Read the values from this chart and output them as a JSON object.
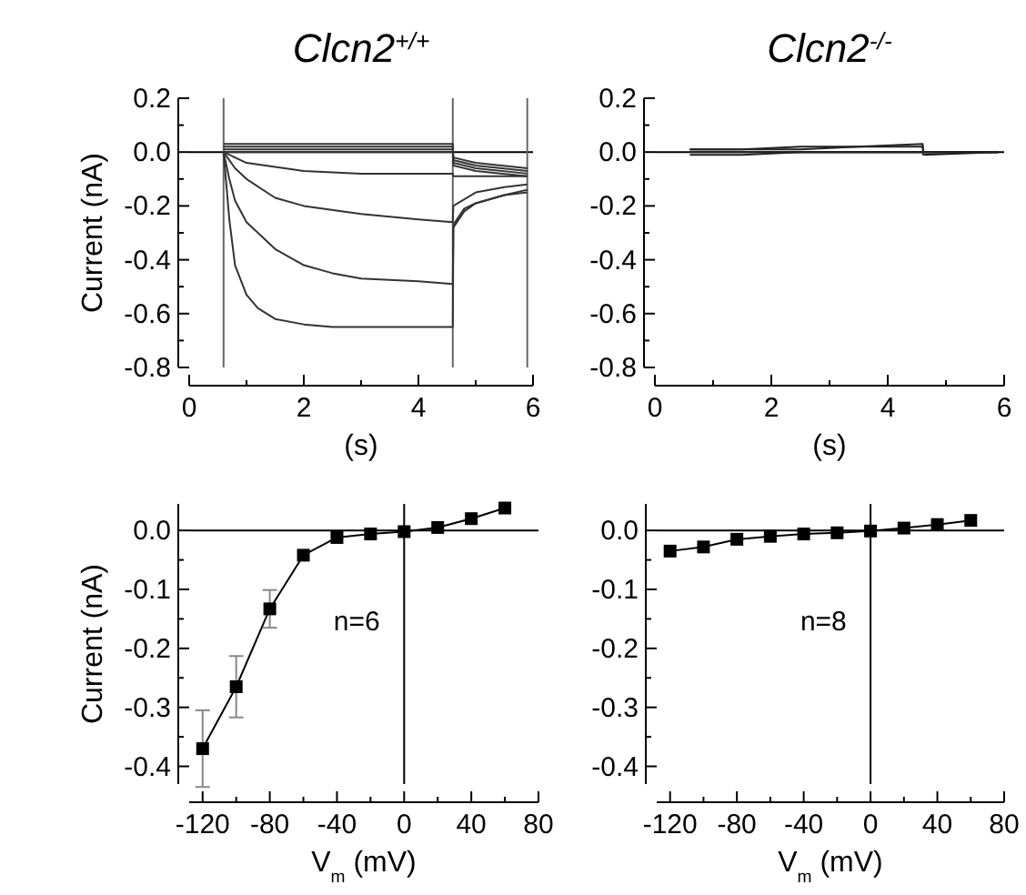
{
  "chart_data": [
    {
      "type": "line",
      "title": "Clcn2$^{+/+}$",
      "xlabel": "(s)",
      "ylabel": "Current (nA)",
      "marker": "none",
      "xlim": [
        0,
        6
      ],
      "ylim": [
        -0.8,
        0.2
      ],
      "xticks": [
        0,
        {
          "value": 1,
          "label": null
        },
        2,
        {
          "value": 3,
          "label": null
        },
        4,
        {
          "value": 5,
          "label": null
        },
        6
      ],
      "yticks": [
        {
          "value": 0.2,
          "label": "0.2"
        },
        {
          "value": 0.1,
          "label": null
        },
        {
          "value": 0,
          "label": "0.0"
        },
        {
          "value": -0.1,
          "label": null
        },
        {
          "value": -0.2,
          "label": "-0.2"
        },
        {
          "value": -0.3,
          "label": null
        },
        {
          "value": -0.4,
          "label": "-0.4"
        },
        {
          "value": -0.5,
          "label": null
        },
        {
          "value": -0.6,
          "label": "-0.6"
        },
        {
          "value": -0.7,
          "label": null
        },
        {
          "value": -0.8,
          "label": "-0.8"
        }
      ],
      "ref_lines": [
        {
          "axis": "y",
          "value": 0,
          "color": "#000000"
        },
        {
          "axis": "x",
          "value": 0.6,
          "color": "#666666"
        },
        {
          "axis": "x",
          "value": 4.6,
          "color": "#666666"
        },
        {
          "axis": "x",
          "value": 5.9,
          "color": "#666666"
        }
      ],
      "series": [
        {
          "color": "#333333",
          "x": [
            0.6,
            0.7,
            0.8,
            1.0,
            1.2,
            1.5,
            2,
            2.5,
            3,
            3.5,
            4,
            4.6,
            4.61,
            4.8,
            5,
            5.5,
            5.9
          ],
          "values": [
            0,
            -0.25,
            -0.42,
            -0.53,
            -0.58,
            -0.62,
            -0.64,
            -0.65,
            -0.65,
            -0.65,
            -0.65,
            -0.65,
            -0.28,
            -0.22,
            -0.19,
            -0.16,
            -0.15
          ]
        },
        {
          "color": "#333333",
          "x": [
            0.6,
            0.7,
            0.8,
            1.0,
            1.5,
            2,
            2.5,
            3,
            4,
            4.6,
            4.61,
            4.8,
            5,
            5.5,
            5.9
          ],
          "values": [
            0,
            -0.1,
            -0.18,
            -0.26,
            -0.36,
            -0.42,
            -0.45,
            -0.47,
            -0.48,
            -0.49,
            -0.27,
            -0.21,
            -0.19,
            -0.16,
            -0.14
          ]
        },
        {
          "color": "#333333",
          "x": [
            0.6,
            0.8,
            1.0,
            1.5,
            2,
            3,
            4,
            4.6,
            4.61,
            5,
            5.5,
            5.9
          ],
          "values": [
            0,
            -0.06,
            -0.1,
            -0.17,
            -0.2,
            -0.23,
            -0.25,
            -0.26,
            -0.2,
            -0.15,
            -0.13,
            -0.12
          ]
        },
        {
          "color": "#333333",
          "x": [
            0.6,
            1,
            2,
            3,
            4.6,
            4.61,
            5.9
          ],
          "values": [
            0,
            -0.04,
            -0.07,
            -0.08,
            -0.08,
            -0.09,
            -0.09
          ]
        },
        {
          "color": "#333333",
          "x": [
            0.6,
            4.6,
            4.61,
            5,
            5.9
          ],
          "values": [
            0,
            0,
            -0.02,
            -0.04,
            -0.06
          ]
        },
        {
          "color": "#333333",
          "x": [
            0.6,
            4.6,
            4.61,
            5,
            5.9
          ],
          "values": [
            0.01,
            0.01,
            -0.03,
            -0.05,
            -0.07
          ]
        },
        {
          "color": "#333333",
          "x": [
            0.6,
            4.6,
            4.61,
            5,
            5.9
          ],
          "values": [
            0.02,
            0.02,
            -0.04,
            -0.06,
            -0.08
          ]
        },
        {
          "color": "#333333",
          "x": [
            0.6,
            4.6,
            4.61,
            5,
            5.9
          ],
          "values": [
            0.03,
            0.03,
            -0.05,
            -0.07,
            -0.09
          ]
        }
      ]
    },
    {
      "type": "line",
      "title": "Clcn2$^{-/-}$",
      "xlabel": "(s)",
      "marker": "none",
      "xlim": [
        0,
        6
      ],
      "ylim": [
        -0.8,
        0.2
      ],
      "xticks": [
        0,
        {
          "value": 1,
          "label": null
        },
        2,
        {
          "value": 3,
          "label": null
        },
        4,
        {
          "value": 5,
          "label": null
        },
        6
      ],
      "yticks": [
        {
          "value": 0.2,
          "label": "0.2"
        },
        {
          "value": 0.1,
          "label": null
        },
        {
          "value": 0,
          "label": "0.0"
        },
        {
          "value": -0.1,
          "label": null
        },
        {
          "value": -0.2,
          "label": "-0.2"
        },
        {
          "value": -0.3,
          "label": null
        },
        {
          "value": -0.4,
          "label": "-0.4"
        },
        {
          "value": -0.5,
          "label": null
        },
        {
          "value": -0.6,
          "label": "-0.6"
        },
        {
          "value": -0.7,
          "label": null
        },
        {
          "value": -0.8,
          "label": "-0.8"
        }
      ],
      "ref_lines": [
        {
          "axis": "y",
          "value": 0,
          "color": "#000000"
        }
      ],
      "series": [
        {
          "color": "#222222",
          "x": [
            0.6,
            1.5,
            2.5,
            3.5,
            4.6,
            4.61,
            5.9
          ],
          "values": [
            0,
            0,
            0,
            0,
            0,
            0,
            0
          ]
        },
        {
          "color": "#222222",
          "x": [
            0.6,
            1.5,
            2.5,
            3.5,
            4.6,
            4.61,
            5.9
          ],
          "values": [
            0.01,
            0.01,
            0.01,
            0.02,
            0.02,
            0,
            0
          ]
        },
        {
          "color": "#222222",
          "x": [
            0.6,
            1.5,
            2.5,
            3.5,
            4.6,
            4.61,
            5.9
          ],
          "values": [
            0.01,
            0.01,
            0.02,
            0.02,
            0.03,
            0,
            0
          ]
        },
        {
          "color": "#222222",
          "x": [
            0.6,
            1.5,
            2.5,
            3.5,
            4.6,
            4.61,
            5.9
          ],
          "values": [
            -0.01,
            -0.01,
            0,
            0,
            0,
            -0.01,
            0
          ]
        }
      ]
    },
    {
      "type": "line",
      "xlabel": "V$_{m}$ (mV)",
      "ylabel": "Current (nA)",
      "marker": "square",
      "xlim": [
        -128,
        80
      ],
      "ylim": [
        -0.43,
        0.045
      ],
      "xticks": [
        -120,
        {
          "value": -100,
          "label": null
        },
        -80,
        {
          "value": -60,
          "label": null
        },
        -40,
        {
          "value": -20,
          "label": null
        },
        0,
        {
          "value": 20,
          "label": null
        },
        40,
        {
          "value": 60,
          "label": null
        },
        80
      ],
      "yticks": [
        {
          "value": 0,
          "label": "0.0"
        },
        {
          "value": -0.05,
          "label": null
        },
        {
          "value": -0.1,
          "label": "-0.1"
        },
        {
          "value": -0.15,
          "label": null
        },
        {
          "value": -0.2,
          "label": "-0.2"
        },
        {
          "value": -0.25,
          "label": null
        },
        {
          "value": -0.3,
          "label": "-0.3"
        },
        {
          "value": -0.35,
          "label": null
        },
        {
          "value": -0.4,
          "label": "-0.4"
        }
      ],
      "ref_lines": [
        {
          "axis": "y",
          "value": 0,
          "color": "#000000"
        },
        {
          "axis": "x",
          "value": 0,
          "color": "#000000"
        }
      ],
      "annotations": [
        "n=6"
      ],
      "series": [
        {
          "color": "#000000",
          "x": [
            -120,
            -100,
            -80,
            -60,
            -40,
            -20,
            0,
            20,
            40,
            60
          ],
          "values": [
            -0.37,
            -0.265,
            -0.133,
            -0.042,
            -0.012,
            -0.006,
            -0.002,
            0.005,
            0.02,
            0.038
          ],
          "errors": [
            0.065,
            0.052,
            0.032,
            null,
            null,
            null,
            null,
            null,
            null,
            null
          ]
        }
      ]
    },
    {
      "type": "line",
      "xlabel": "V$_{m}$ (mV)",
      "marker": "square",
      "xlim": [
        -128,
        80
      ],
      "ylim": [
        -0.43,
        0.045
      ],
      "xticks": [
        -120,
        {
          "value": -100,
          "label": null
        },
        -80,
        {
          "value": -60,
          "label": null
        },
        -40,
        {
          "value": -20,
          "label": null
        },
        0,
        {
          "value": 20,
          "label": null
        },
        40,
        {
          "value": 60,
          "label": null
        },
        80
      ],
      "yticks": [
        {
          "value": 0,
          "label": "0.0"
        },
        {
          "value": -0.05,
          "label": null
        },
        {
          "value": -0.1,
          "label": "-0.1"
        },
        {
          "value": -0.15,
          "label": null
        },
        {
          "value": -0.2,
          "label": "-0.2"
        },
        {
          "value": -0.25,
          "label": null
        },
        {
          "value": -0.3,
          "label": "-0.3"
        },
        {
          "value": -0.35,
          "label": null
        },
        {
          "value": -0.4,
          "label": "-0.4"
        }
      ],
      "ref_lines": [
        {
          "axis": "y",
          "value": 0,
          "color": "#000000"
        },
        {
          "axis": "x",
          "value": 0,
          "color": "#000000"
        }
      ],
      "annotations": [
        "n=8"
      ],
      "series": [
        {
          "color": "#000000",
          "x": [
            -120,
            -100,
            -80,
            -60,
            -40,
            -20,
            0,
            20,
            40,
            60
          ],
          "values": [
            -0.035,
            -0.028,
            -0.015,
            -0.01,
            -0.006,
            -0.004,
            -0.001,
            0.004,
            0.01,
            0.017
          ]
        }
      ]
    }
  ]
}
